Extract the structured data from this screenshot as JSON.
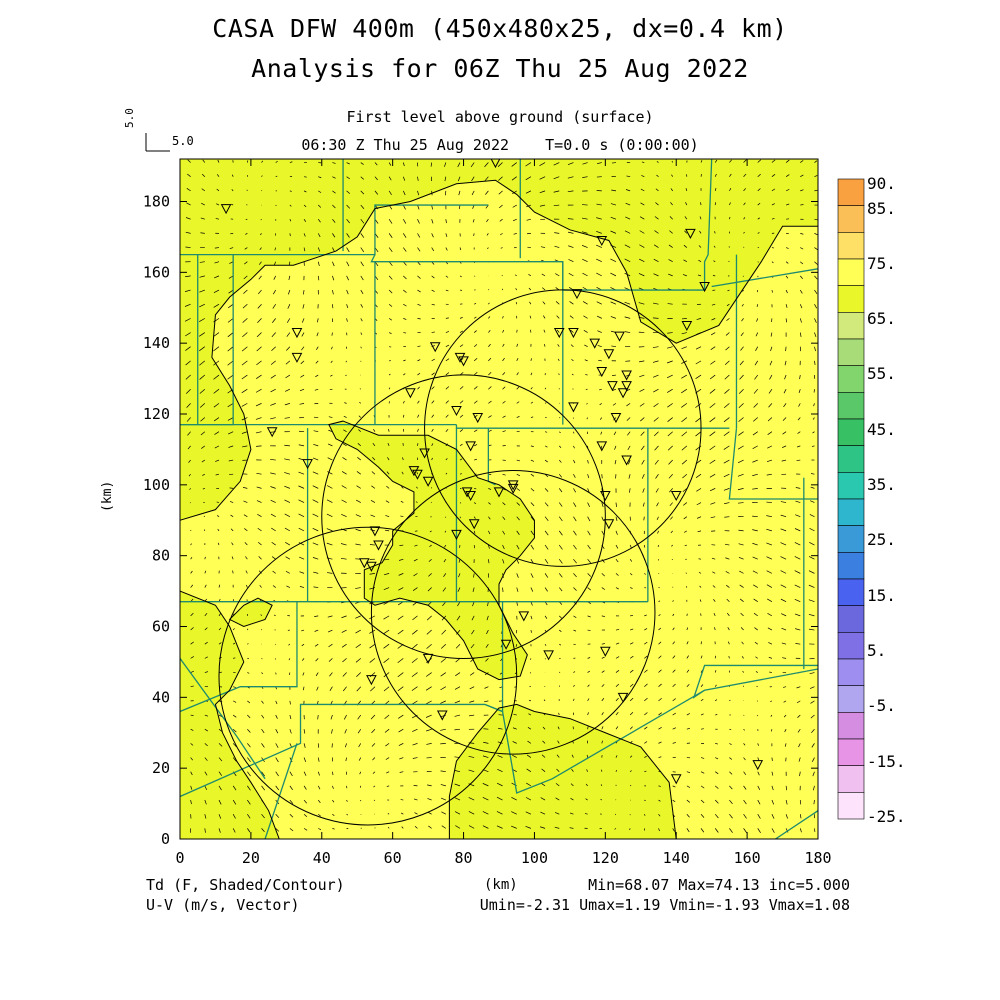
{
  "header": {
    "title_line1": "CASA DFW 400m (450x480x25, dx=0.4 km)",
    "title_line2": "Analysis for 06Z Thu 25 Aug 2022",
    "subtitle_level": "First level above ground (surface)",
    "subtitle_time": "06:30 Z Thu 25 Aug 2022    T=0.0 s (0:00:00)"
  },
  "vector_scale": {
    "vertical_label": "5.0",
    "horizontal_label": "5.0"
  },
  "footer": {
    "field_label": "Td (F, Shaded/Contour)",
    "vector_label": "U-V (m/s, Vector)",
    "stats_line1": "Min=68.07 Max=74.13 inc=5.000",
    "stats_line2": "Umin=-2.31 Umax=1.19 Vmin=-1.93 Vmax=1.08"
  },
  "colors": {
    "field_yellow": "#ffff55",
    "field_green_yellow": "#e8f62a",
    "boundary": "#1e8a6e",
    "contour": "#000000"
  },
  "chart_data": {
    "type": "heatmap",
    "xlabel": "(km)",
    "ylabel": "(km)",
    "xlim": [
      0,
      180
    ],
    "ylim": [
      0,
      192
    ],
    "xticks": [
      0,
      20,
      40,
      60,
      80,
      100,
      120,
      140,
      160,
      180
    ],
    "yticks": [
      0,
      20,
      40,
      60,
      80,
      100,
      120,
      140,
      160,
      180
    ],
    "colorbar": {
      "labels": [
        "90.",
        "85.",
        "75.",
        "65.",
        "55.",
        "45.",
        "35.",
        "25.",
        "15.",
        "5.",
        "-5.",
        "-15.",
        "-25."
      ],
      "colors": [
        "#f9a040",
        "#fbbf57",
        "#fee067",
        "#ffff55",
        "#e8f62a",
        "#d2ea7c",
        "#a7dc78",
        "#82d46c",
        "#5ac868",
        "#37c064",
        "#2dc485",
        "#2bc8b0",
        "#2fb6cf",
        "#3a9ad8",
        "#3b7fe0",
        "#4a62f0",
        "#6a68dc",
        "#8070e6",
        "#9d8ef0",
        "#b0a6f0",
        "#d48de0",
        "#e894e6",
        "#f0c0f0",
        "#fde4fc"
      ]
    },
    "field_min": 68.07,
    "field_max": 74.13,
    "contour_interval": 5.0,
    "vector_stats": {
      "umin": -2.31,
      "umax": 1.19,
      "vmin": -1.93,
      "vmax": 1.08
    },
    "radar_rings": [
      {
        "cx": 108,
        "cy": 116,
        "r": 39
      },
      {
        "cx": 80,
        "cy": 91,
        "r": 40
      },
      {
        "cx": 94,
        "cy": 64,
        "r": 40
      },
      {
        "cx": 53,
        "cy": 46,
        "r": 42
      }
    ],
    "stations": [
      [
        13,
        178
      ],
      [
        33,
        143
      ],
      [
        33,
        136
      ],
      [
        26,
        115
      ],
      [
        36,
        106
      ],
      [
        72,
        139
      ],
      [
        65,
        126
      ],
      [
        79,
        136
      ],
      [
        80,
        135
      ],
      [
        78,
        121
      ],
      [
        84,
        119
      ],
      [
        69,
        109
      ],
      [
        66,
        104
      ],
      [
        67,
        103
      ],
      [
        70,
        101
      ],
      [
        82,
        111
      ],
      [
        81,
        98
      ],
      [
        82,
        97
      ],
      [
        90,
        98
      ],
      [
        94,
        100
      ],
      [
        94,
        99
      ],
      [
        107,
        143
      ],
      [
        112,
        154
      ],
      [
        111,
        143
      ],
      [
        117,
        140
      ],
      [
        119,
        132
      ],
      [
        121,
        137
      ],
      [
        122,
        128
      ],
      [
        126,
        131
      ],
      [
        126,
        128
      ],
      [
        125,
        126
      ],
      [
        111,
        122
      ],
      [
        123,
        119
      ],
      [
        124,
        142
      ],
      [
        119,
        111
      ],
      [
        126,
        107
      ],
      [
        120,
        97
      ],
      [
        121,
        89
      ],
      [
        83,
        89
      ],
      [
        78,
        86
      ],
      [
        55,
        87
      ],
      [
        56,
        83
      ],
      [
        52,
        78
      ],
      [
        54,
        77
      ],
      [
        97,
        63
      ],
      [
        92,
        55
      ],
      [
        70,
        51
      ],
      [
        54,
        45
      ],
      [
        74,
        35
      ],
      [
        104,
        52
      ],
      [
        120,
        53
      ],
      [
        125,
        40
      ],
      [
        140,
        97
      ],
      [
        140,
        17
      ],
      [
        163,
        21
      ],
      [
        143,
        145
      ],
      [
        144,
        171
      ],
      [
        148,
        156
      ],
      [
        119,
        169
      ],
      [
        89,
        191
      ]
    ],
    "green_regions": [
      [
        [
          0,
          192
        ],
        [
          180,
          192
        ],
        [
          180,
          173
        ],
        [
          170,
          173
        ],
        [
          164,
          163
        ],
        [
          160,
          157
        ],
        [
          152,
          145
        ],
        [
          140,
          140
        ],
        [
          130,
          146
        ],
        [
          126,
          160
        ],
        [
          121,
          169
        ],
        [
          110,
          172
        ],
        [
          100,
          177
        ],
        [
          95,
          182
        ],
        [
          89,
          186
        ],
        [
          78,
          185
        ],
        [
          65,
          180
        ],
        [
          55,
          178
        ],
        [
          50,
          170
        ],
        [
          44,
          166
        ],
        [
          38,
          164
        ],
        [
          32,
          162
        ],
        [
          24,
          162
        ],
        [
          20,
          158
        ],
        [
          14,
          153
        ],
        [
          10,
          148
        ],
        [
          9,
          136
        ],
        [
          14,
          128
        ],
        [
          18,
          120
        ],
        [
          20,
          110
        ],
        [
          17,
          101
        ],
        [
          10,
          93
        ],
        [
          0,
          90
        ]
      ],
      [
        [
          0,
          70
        ],
        [
          10,
          66
        ],
        [
          14,
          60
        ],
        [
          18,
          50
        ],
        [
          14,
          42
        ],
        [
          10,
          38
        ],
        [
          12,
          30
        ],
        [
          16,
          22
        ],
        [
          20,
          16
        ],
        [
          25,
          8
        ],
        [
          28,
          0
        ],
        [
          0,
          0
        ]
      ],
      [
        [
          46,
          118
        ],
        [
          56,
          114
        ],
        [
          70,
          114
        ],
        [
          78,
          110
        ],
        [
          84,
          102
        ],
        [
          90,
          100
        ],
        [
          96,
          96
        ],
        [
          100,
          90
        ],
        [
          100,
          85
        ],
        [
          96,
          80
        ],
        [
          92,
          76
        ],
        [
          90,
          72
        ],
        [
          90,
          66
        ],
        [
          94,
          58
        ],
        [
          98,
          52
        ],
        [
          96,
          46
        ],
        [
          90,
          45
        ],
        [
          84,
          48
        ],
        [
          80,
          56
        ],
        [
          75,
          62
        ],
        [
          70,
          66
        ],
        [
          62,
          68
        ],
        [
          55,
          66
        ],
        [
          52,
          68
        ],
        [
          52,
          76
        ],
        [
          57,
          78
        ],
        [
          60,
          83
        ],
        [
          60,
          87
        ],
        [
          66,
          92
        ],
        [
          66,
          98
        ],
        [
          60,
          101
        ],
        [
          56,
          105
        ],
        [
          50,
          110
        ],
        [
          44,
          113
        ],
        [
          42,
          117
        ]
      ],
      [
        [
          76,
          0
        ],
        [
          140,
          0
        ],
        [
          138,
          16
        ],
        [
          130,
          26
        ],
        [
          120,
          30
        ],
        [
          110,
          34
        ],
        [
          100,
          36
        ],
        [
          95,
          38
        ],
        [
          90,
          37
        ],
        [
          84,
          30
        ],
        [
          78,
          22
        ],
        [
          76,
          12
        ]
      ],
      [
        [
          14,
          62
        ],
        [
          18,
          66
        ],
        [
          22,
          68
        ],
        [
          26,
          66
        ],
        [
          24,
          62
        ],
        [
          18,
          60
        ]
      ]
    ],
    "county_lines": [
      [
        [
          0,
          165
        ],
        [
          15,
          165
        ],
        [
          15,
          117
        ],
        [
          0,
          117
        ]
      ],
      [
        [
          5,
          165
        ],
        [
          5,
          117
        ]
      ],
      [
        [
          0,
          117
        ],
        [
          78,
          117
        ]
      ],
      [
        [
          78,
          117
        ],
        [
          78,
          116
        ],
        [
          155,
          116
        ]
      ],
      [
        [
          15,
          165
        ],
        [
          55,
          165
        ],
        [
          55,
          179
        ],
        [
          87,
          179
        ]
      ],
      [
        [
          55,
          165
        ],
        [
          54,
          163
        ],
        [
          108,
          163
        ],
        [
          108,
          155
        ],
        [
          148,
          155
        ],
        [
          148,
          163
        ],
        [
          149,
          165
        ],
        [
          150,
          192
        ]
      ],
      [
        [
          46,
          192
        ],
        [
          46,
          166
        ]
      ],
      [
        [
          96,
          192
        ],
        [
          96,
          164
        ]
      ],
      [
        [
          55,
          163
        ],
        [
          55,
          117
        ]
      ],
      [
        [
          108,
          163
        ],
        [
          108,
          117
        ]
      ],
      [
        [
          78,
          116
        ],
        [
          78,
          67
        ],
        [
          132,
          67
        ]
      ],
      [
        [
          36,
          116
        ],
        [
          36,
          67
        ]
      ],
      [
        [
          87,
          116
        ],
        [
          87,
          101
        ],
        [
          89,
          100
        ]
      ],
      [
        [
          157,
          165
        ],
        [
          157,
          116
        ]
      ],
      [
        [
          132,
          116
        ],
        [
          132,
          67
        ]
      ],
      [
        [
          157,
          116
        ],
        [
          155,
          96
        ],
        [
          180,
          96
        ],
        [
          180,
          101
        ]
      ],
      [
        [
          0,
          67
        ],
        [
          78,
          67
        ]
      ],
      [
        [
          33,
          67
        ],
        [
          33,
          43
        ],
        [
          17,
          43
        ],
        [
          0,
          36
        ]
      ],
      [
        [
          0,
          12
        ],
        [
          34,
          27
        ],
        [
          34,
          38
        ],
        [
          51,
          38
        ],
        [
          86,
          38
        ],
        [
          91,
          36
        ]
      ],
      [
        [
          24,
          0
        ],
        [
          33,
          27
        ]
      ],
      [
        [
          86,
          38
        ],
        [
          91,
          36
        ],
        [
          95,
          13
        ],
        [
          105,
          17
        ],
        [
          148,
          42
        ],
        [
          180,
          48
        ]
      ],
      [
        [
          148,
          42
        ],
        [
          145,
          40
        ],
        [
          148,
          49
        ],
        [
          180,
          49
        ]
      ],
      [
        [
          176,
          102
        ],
        [
          176,
          48
        ]
      ],
      [
        [
          91,
          36
        ],
        [
          91,
          67
        ]
      ],
      [
        [
          150,
          156
        ],
        [
          180,
          161
        ]
      ],
      [
        [
          168,
          0
        ],
        [
          180,
          8
        ]
      ],
      [
        [
          0,
          51
        ],
        [
          16,
          29
        ],
        [
          24,
          17
        ]
      ]
    ]
  }
}
